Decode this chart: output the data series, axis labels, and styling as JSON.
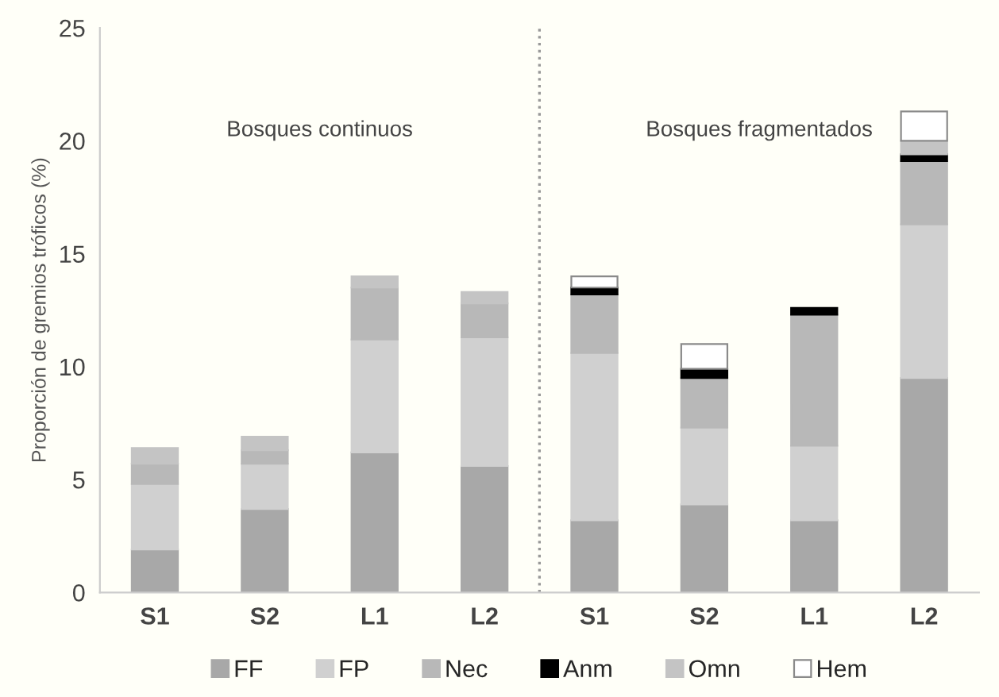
{
  "chart_data": {
    "type": "bar",
    "stacked": true,
    "ylabel": "Proporción de gremios tróficos (%)",
    "categories": [
      "S1",
      "S2",
      "L1",
      "L2",
      "S1",
      "S2",
      "L1",
      "L2"
    ],
    "series": [
      {
        "name": "FF",
        "color": "#a8a8a8",
        "values": [
          1.9,
          3.7,
          6.2,
          5.6,
          3.2,
          3.9,
          3.2,
          9.5
        ]
      },
      {
        "name": "FP",
        "color": "#d0d0d0",
        "values": [
          2.9,
          2.0,
          5.0,
          5.7,
          7.4,
          3.4,
          3.3,
          6.8
        ]
      },
      {
        "name": "Nec",
        "color": "#b8b8b8",
        "values": [
          0.9,
          0.6,
          2.3,
          1.5,
          2.6,
          2.2,
          5.8,
          2.8
        ]
      },
      {
        "name": "Anm",
        "color": "#000000",
        "values": [
          null,
          null,
          null,
          null,
          0.3,
          0.4,
          0.3,
          0.3
        ]
      },
      {
        "name": "Omn",
        "color": "#c4c4c4",
        "values": [
          0.7,
          0.6,
          0.5,
          0.5,
          null,
          null,
          null,
          0.6
        ]
      },
      {
        "name": "Hem",
        "color": "#ffffff",
        "values": [
          null,
          null,
          null,
          null,
          0.5,
          1.1,
          null,
          1.3
        ]
      }
    ],
    "ylim": [
      0,
      25
    ],
    "yticks": [
      0,
      5,
      10,
      15,
      20,
      25
    ],
    "annotations": [
      "Bosques continuos",
      "Bosques fragmentados"
    ],
    "legend": "bottom",
    "grid": false
  }
}
